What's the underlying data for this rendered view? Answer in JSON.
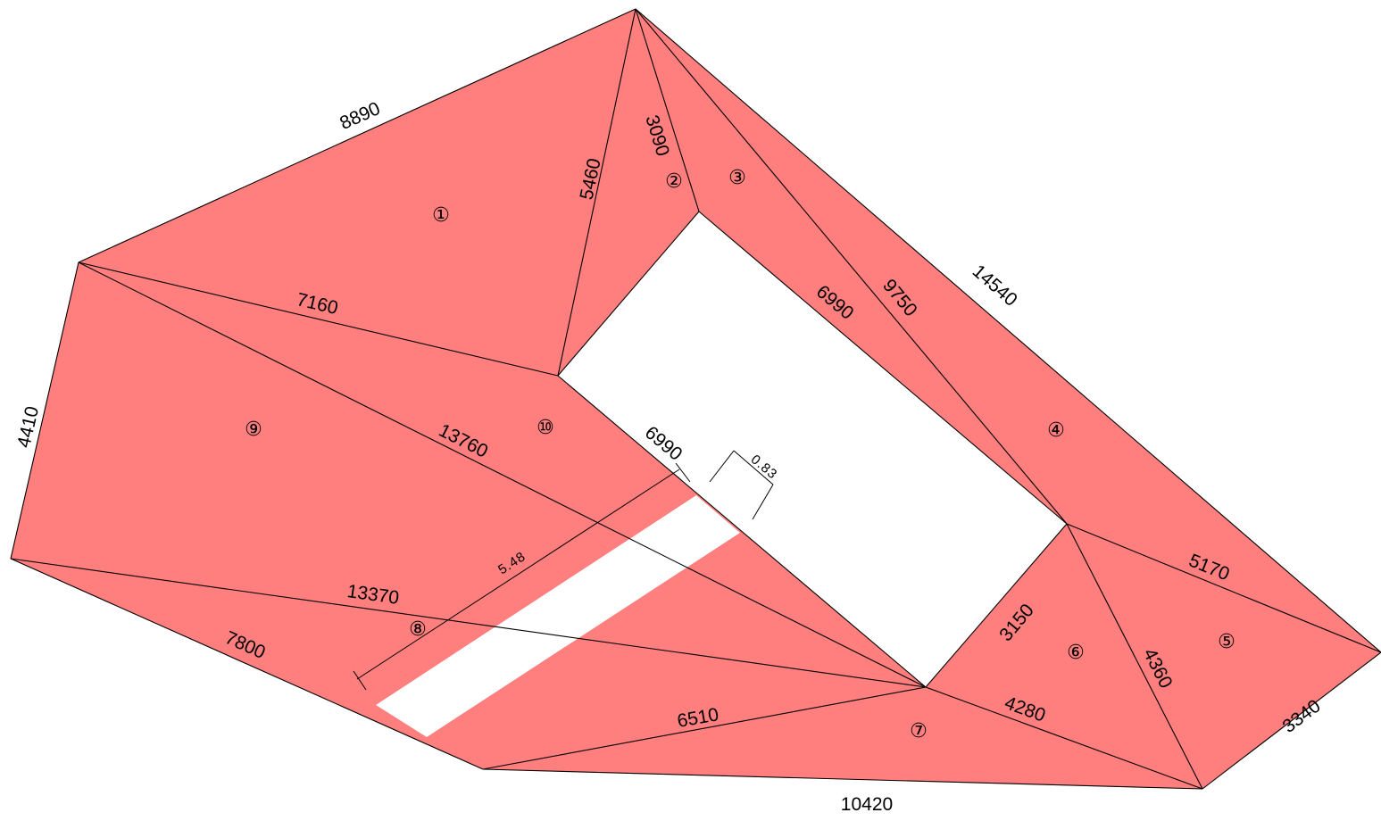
{
  "colors": {
    "region_fill": "#ff7e7e",
    "line": "#000000",
    "background": "#ffffff"
  },
  "region_labels": [
    "①",
    "②",
    "③",
    "④",
    "⑤",
    "⑥",
    "⑦",
    "⑧",
    "⑨",
    "⑩"
  ],
  "edge_lengths": {
    "top_left_8890": "8890",
    "diag_5460": "5460",
    "short_3090": "3090",
    "inner_7160": "7160",
    "left_4410": "4410",
    "diag_13760": "13760",
    "inner_6990_upper": "6990",
    "diag_9750": "9750",
    "right_14540": "14540",
    "inner_6990_lower": "6990",
    "diag_13370": "13370",
    "bottom_left_7800": "7800",
    "diag_6510": "6510",
    "bottom_10420": "10420",
    "inner_3150": "3150",
    "diag_4280": "4280",
    "diag_4360": "4360",
    "right_5170": "5170",
    "right_3340": "3340"
  },
  "dimensions": {
    "gap_width": "0.83",
    "slot_length": "5.48"
  }
}
